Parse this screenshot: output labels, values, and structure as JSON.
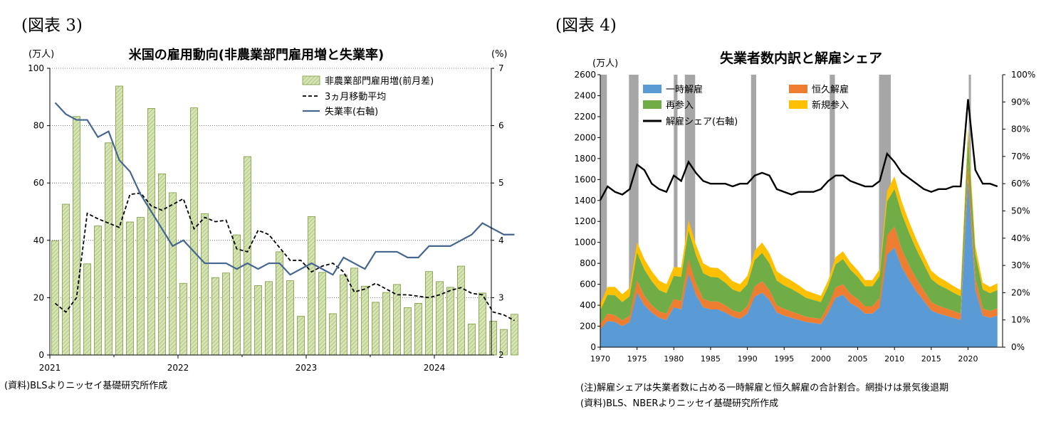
{
  "fig3": {
    "label": "(図表 3)",
    "source": "(資料)BLSよりニッセイ基礎研究所作成"
  },
  "fig4": {
    "label": "(図表 4)",
    "note": "(注)解雇シェアは失業者数に占める一時解雇と恒久解雇の合計割合。網掛けは景気後退期",
    "source": "(資料)BLS、NBERよりニッセイ基礎研究所作成"
  },
  "chart_data": [
    {
      "type": "bar",
      "title": "米国の雇用動向(非農業部門雇用増と失業率)",
      "ylabel": "(万人)",
      "y2label": "(%)",
      "ylim": [
        0,
        100
      ],
      "y2lim": [
        2,
        7
      ],
      "yticks": [
        0,
        20,
        40,
        60,
        80,
        100
      ],
      "y2ticks": [
        2,
        3,
        4,
        5,
        6,
        7
      ],
      "xticks": [
        "2021",
        "2022",
        "2023",
        "2024"
      ],
      "legend_position": "top-right",
      "colors": {
        "bars": "#d6e4b4",
        "bar_edge": "#7a9a3c",
        "ma": "#000000",
        "rate": "#44668f"
      },
      "series": [
        {
          "name": "非農業部門雇用増(前月差)",
          "kind": "bar",
          "values": [
            39.8,
            52.6,
            83.2,
            31.8,
            45.0,
            74.0,
            93.8,
            46.4,
            48.0,
            86.0,
            63.2,
            56.6,
            25.0,
            86.2,
            49.3,
            27.0,
            28.6,
            41.9,
            69.2,
            24.2,
            25.6,
            36.0,
            25.9,
            13.5,
            48.3,
            28.8,
            14.4,
            27.9,
            30.3,
            24.0,
            18.4,
            21.8,
            24.6,
            16.5,
            18.0,
            29.1,
            25.6,
            23.6,
            31.0,
            10.8,
            21.6,
            11.8,
            8.9,
            14.2
          ]
        },
        {
          "name": "3ヵ月移動平均",
          "kind": "line",
          "values": [
            18.0,
            15.0,
            20.0,
            49.4,
            47.5,
            46.0,
            44.5,
            56.0,
            56.5,
            52.0,
            50.5,
            52.5,
            54.5,
            44.0,
            48.0,
            46.5,
            47.0,
            37.0,
            36.0,
            43.5,
            42.0,
            37.5,
            33.0,
            33.0,
            29.0,
            31.0,
            32.0,
            29.0,
            22.0,
            23.0,
            25.0,
            23.0,
            21.0,
            21.0,
            20.5,
            20.0,
            21.0,
            22.5,
            23.5,
            21.5,
            21.0,
            15.0,
            14.0,
            12.0
          ]
        },
        {
          "name": "失業率(右軸)",
          "kind": "line",
          "axis": "right",
          "values": [
            6.4,
            6.2,
            6.1,
            6.1,
            5.8,
            5.9,
            5.4,
            5.2,
            4.8,
            4.5,
            4.2,
            3.9,
            4.0,
            3.8,
            3.6,
            3.6,
            3.6,
            3.5,
            3.6,
            3.5,
            3.6,
            3.6,
            3.4,
            3.5,
            3.6,
            3.5,
            3.4,
            3.7,
            3.6,
            3.5,
            3.8,
            3.8,
            3.8,
            3.7,
            3.7,
            3.9,
            3.9,
            3.9,
            4.0,
            4.1,
            4.3,
            4.2,
            4.1,
            4.1
          ]
        }
      ]
    },
    {
      "type": "area",
      "title": "失業者数内訳と解雇シェア",
      "ylabel": "(万人)",
      "ylim": [
        0,
        2600
      ],
      "y2lim": [
        0,
        100
      ],
      "yticks": [
        0,
        200,
        400,
        600,
        800,
        1000,
        1200,
        1400,
        1600,
        1800,
        2000,
        2200,
        2400,
        2600
      ],
      "y2ticks": [
        "0%",
        "10%",
        "20%",
        "30%",
        "40%",
        "50%",
        "60%",
        "70%",
        "80%",
        "90%",
        "100%"
      ],
      "xticks": [
        "1970",
        "1975",
        "1980",
        "1985",
        "1990",
        "1995",
        "2000",
        "2005",
        "2010",
        "2015",
        "2020"
      ],
      "recessions": [
        [
          1970.0,
          1970.9
        ],
        [
          1973.9,
          1975.2
        ],
        [
          1980.0,
          1980.5
        ],
        [
          1981.5,
          1982.9
        ],
        [
          1990.5,
          1991.2
        ],
        [
          2001.2,
          2001.9
        ],
        [
          2007.9,
          2009.5
        ],
        [
          2020.1,
          2020.4
        ]
      ],
      "legend_position": "top-left",
      "colors": {
        "temporary": "#5b9bd5",
        "permanent": "#ed7d31",
        "reentrant": "#70ad47",
        "new_entrant": "#ffc000",
        "share": "#000000",
        "recession": "#a6a6a6"
      },
      "x": [
        1970,
        1971,
        1972,
        1973,
        1974,
        1975,
        1976,
        1977,
        1978,
        1979,
        1980,
        1981,
        1982,
        1983,
        1984,
        1985,
        1986,
        1987,
        1988,
        1989,
        1990,
        1991,
        1992,
        1993,
        1994,
        1995,
        1996,
        1997,
        1998,
        1999,
        2000,
        2001,
        2002,
        2003,
        2004,
        2005,
        2006,
        2007,
        2008,
        2009,
        2010,
        2011,
        2012,
        2013,
        2014,
        2015,
        2016,
        2017,
        2018,
        2019,
        2020,
        2021,
        2022,
        2023,
        2024
      ],
      "series": [
        {
          "name": "一時解雇",
          "values": [
            170,
            250,
            240,
            200,
            240,
            520,
            400,
            330,
            280,
            260,
            380,
            360,
            700,
            500,
            380,
            360,
            360,
            330,
            290,
            270,
            320,
            480,
            520,
            450,
            330,
            300,
            280,
            260,
            240,
            230,
            220,
            330,
            470,
            500,
            420,
            380,
            320,
            320,
            380,
            880,
            950,
            760,
            640,
            530,
            440,
            350,
            320,
            300,
            280,
            260,
            1600,
            550,
            300,
            280,
            300
          ]
        },
        {
          "name": "恒久解雇",
          "values": [
            50,
            70,
            65,
            55,
            60,
            120,
            90,
            70,
            60,
            60,
            80,
            80,
            140,
            110,
            80,
            75,
            75,
            70,
            60,
            60,
            70,
            100,
            110,
            95,
            70,
            65,
            60,
            55,
            50,
            50,
            50,
            70,
            100,
            100,
            90,
            80,
            70,
            70,
            90,
            190,
            200,
            170,
            140,
            120,
            100,
            80,
            75,
            70,
            65,
            60,
            150,
            110,
            70,
            65,
            70
          ]
        },
        {
          "name": "再参入",
          "values": [
            130,
            180,
            190,
            175,
            185,
            260,
            250,
            230,
            205,
            195,
            220,
            230,
            270,
            270,
            245,
            235,
            230,
            215,
            200,
            195,
            210,
            250,
            270,
            255,
            235,
            225,
            215,
            200,
            180,
            170,
            160,
            180,
            220,
            240,
            230,
            210,
            190,
            190,
            210,
            320,
            360,
            340,
            310,
            280,
            250,
            220,
            200,
            190,
            175,
            165,
            260,
            230,
            180,
            170,
            175
          ]
        },
        {
          "name": "新規参入",
          "values": [
            60,
            75,
            80,
            75,
            80,
            100,
            100,
            95,
            90,
            85,
            85,
            90,
            100,
            100,
            95,
            90,
            90,
            85,
            80,
            75,
            80,
            90,
            100,
            95,
            90,
            85,
            80,
            75,
            70,
            65,
            60,
            60,
            70,
            75,
            70,
            65,
            60,
            60,
            65,
            100,
            120,
            115,
            105,
            95,
            85,
            80,
            75,
            70,
            65,
            60,
            80,
            75,
            65,
            60,
            65
          ]
        },
        {
          "name": "解雇シェア(右軸)",
          "axis": "right",
          "values": [
            54,
            59,
            57,
            56,
            58,
            67,
            65,
            60,
            58,
            57,
            63,
            61,
            68,
            64,
            61,
            60,
            60,
            60,
            59,
            60,
            60,
            63,
            64,
            63,
            58,
            57,
            56,
            57,
            57,
            57,
            58,
            61,
            63,
            63,
            61,
            60,
            59,
            59,
            61,
            71,
            68,
            64,
            62,
            60,
            58,
            57,
            58,
            58,
            59,
            59,
            91,
            65,
            60,
            60,
            59
          ]
        }
      ]
    }
  ]
}
